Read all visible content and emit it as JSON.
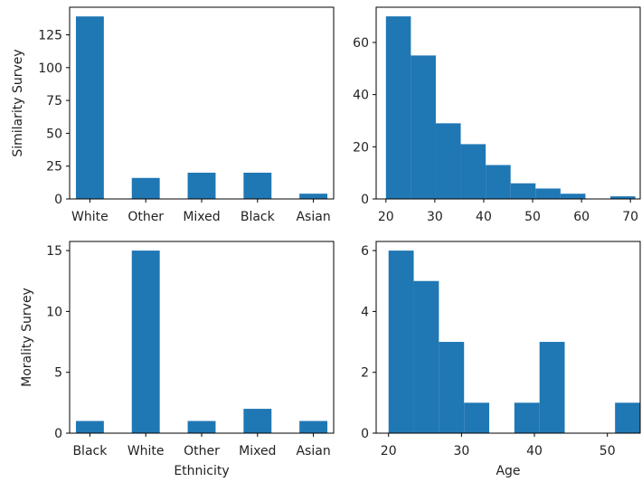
{
  "colors": {
    "bar": "#1f77b4",
    "axis": "#000000",
    "background": "#ffffff"
  },
  "chart_data": [
    {
      "type": "bar",
      "panel": "top-left",
      "title": "",
      "xlabel": "",
      "ylabel": "Similarity Survey",
      "categories": [
        "White",
        "Other",
        "Mixed",
        "Black",
        "Asian"
      ],
      "values": [
        139,
        16,
        20,
        20,
        4
      ],
      "ylim": [
        0,
        146
      ],
      "yticks": [
        0,
        25,
        50,
        75,
        100,
        125
      ],
      "grid": false
    },
    {
      "type": "histogram",
      "panel": "top-right",
      "title": "",
      "xlabel": "",
      "ylabel": "",
      "bins": [
        {
          "x0": 20.0,
          "x1": 25.1,
          "count": 70
        },
        {
          "x0": 25.1,
          "x1": 30.2,
          "count": 55
        },
        {
          "x0": 30.2,
          "x1": 35.3,
          "count": 29
        },
        {
          "x0": 35.3,
          "x1": 40.4,
          "count": 21
        },
        {
          "x0": 40.4,
          "x1": 45.5,
          "count": 13
        },
        {
          "x0": 45.5,
          "x1": 50.6,
          "count": 6
        },
        {
          "x0": 50.6,
          "x1": 55.7,
          "count": 4
        },
        {
          "x0": 55.7,
          "x1": 60.8,
          "count": 2
        },
        {
          "x0": 60.8,
          "x1": 65.9,
          "count": 0
        },
        {
          "x0": 65.9,
          "x1": 71.0,
          "count": 1
        }
      ],
      "xlim": [
        18.0,
        72.0
      ],
      "ylim": [
        0,
        73.5
      ],
      "xticks": [
        20,
        30,
        40,
        50,
        60,
        70
      ],
      "yticks": [
        0,
        20,
        40,
        60
      ],
      "grid": false
    },
    {
      "type": "bar",
      "panel": "bottom-left",
      "title": "",
      "xlabel": "Ethnicity",
      "ylabel": "Morality Survey",
      "categories": [
        "Black",
        "White",
        "Other",
        "Mixed",
        "Asian"
      ],
      "values": [
        1,
        15,
        1,
        2,
        1
      ],
      "ylim": [
        0,
        15.75
      ],
      "yticks": [
        0,
        5,
        10,
        15
      ],
      "grid": false
    },
    {
      "type": "histogram",
      "panel": "bottom-right",
      "title": "",
      "xlabel": "Age",
      "ylabel": "",
      "bins": [
        {
          "x0": 20.0,
          "x1": 23.45,
          "count": 6
        },
        {
          "x0": 23.45,
          "x1": 26.9,
          "count": 5
        },
        {
          "x0": 26.9,
          "x1": 30.35,
          "count": 3
        },
        {
          "x0": 30.35,
          "x1": 33.8,
          "count": 1
        },
        {
          "x0": 33.8,
          "x1": 37.25,
          "count": 0
        },
        {
          "x0": 37.25,
          "x1": 40.7,
          "count": 1
        },
        {
          "x0": 40.7,
          "x1": 44.15,
          "count": 3
        },
        {
          "x0": 44.15,
          "x1": 47.6,
          "count": 0
        },
        {
          "x0": 47.6,
          "x1": 51.05,
          "count": 0
        },
        {
          "x0": 51.05,
          "x1": 54.5,
          "count": 1
        }
      ],
      "xlim": [
        18.3,
        54.5
      ],
      "ylim": [
        0,
        6.3
      ],
      "xticks": [
        20,
        30,
        40,
        50
      ],
      "yticks": [
        0,
        2,
        4,
        6
      ],
      "grid": false
    }
  ]
}
